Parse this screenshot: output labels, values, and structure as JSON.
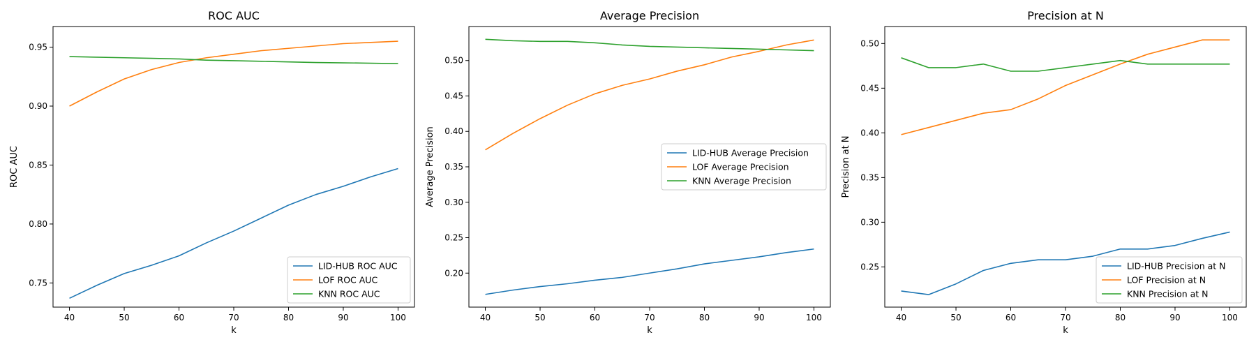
{
  "chart_data": [
    {
      "type": "line",
      "title": "ROC AUC",
      "xlabel": "k",
      "ylabel": "ROC AUC",
      "xlim": [
        37,
        103
      ],
      "ylim": [
        0.7295,
        0.9675
      ],
      "xticks": [
        40,
        50,
        60,
        70,
        80,
        90,
        100
      ],
      "yticks": [
        0.75,
        0.8,
        0.85,
        0.9,
        0.95
      ],
      "ytick_labels": [
        "0.75",
        "0.80",
        "0.85",
        "0.90",
        "0.95"
      ],
      "grid": false,
      "legend_position": "lower-right",
      "x": [
        40,
        45,
        50,
        55,
        60,
        65,
        70,
        75,
        80,
        85,
        90,
        95,
        100
      ],
      "series": [
        {
          "name": "LID-HUB ROC AUC",
          "color": "#1f77b4",
          "values": [
            0.737,
            0.748,
            0.758,
            0.765,
            0.773,
            0.784,
            0.794,
            0.805,
            0.816,
            0.825,
            0.832,
            0.84,
            0.847
          ]
        },
        {
          "name": "LOF ROC AUC",
          "color": "#ff7f0e",
          "values": [
            0.9,
            0.912,
            0.923,
            0.931,
            0.937,
            0.941,
            0.944,
            0.947,
            0.949,
            0.951,
            0.953,
            0.954,
            0.955
          ]
        },
        {
          "name": "KNN ROC AUC",
          "color": "#2ca02c",
          "values": [
            0.942,
            0.9415,
            0.941,
            0.9405,
            0.94,
            0.939,
            0.9385,
            0.938,
            0.9375,
            0.937,
            0.9367,
            0.9364,
            0.936
          ]
        }
      ]
    },
    {
      "type": "line",
      "title": "Average Precision",
      "xlabel": "k",
      "ylabel": "Average Precision",
      "xlim": [
        37,
        103
      ],
      "ylim": [
        0.152,
        0.548
      ],
      "xticks": [
        40,
        50,
        60,
        70,
        80,
        90,
        100
      ],
      "yticks": [
        0.2,
        0.25,
        0.3,
        0.35,
        0.4,
        0.45,
        0.5
      ],
      "ytick_labels": [
        "0.20",
        "0.25",
        "0.30",
        "0.35",
        "0.40",
        "0.45",
        "0.50"
      ],
      "grid": false,
      "legend_position": "center-right",
      "x": [
        40,
        45,
        50,
        55,
        60,
        65,
        70,
        75,
        80,
        85,
        90,
        95,
        100
      ],
      "series": [
        {
          "name": "LID-HUB Average Precision",
          "color": "#1f77b4",
          "values": [
            0.17,
            0.176,
            0.181,
            0.185,
            0.19,
            0.194,
            0.2,
            0.206,
            0.213,
            0.218,
            0.223,
            0.229,
            0.234
          ]
        },
        {
          "name": "LOF Average Precision",
          "color": "#ff7f0e",
          "values": [
            0.374,
            0.397,
            0.418,
            0.437,
            0.453,
            0.465,
            0.474,
            0.485,
            0.494,
            0.505,
            0.513,
            0.522,
            0.529
          ]
        },
        {
          "name": "KNN Average Precision",
          "color": "#2ca02c",
          "values": [
            0.53,
            0.528,
            0.527,
            0.527,
            0.525,
            0.522,
            0.52,
            0.519,
            0.518,
            0.517,
            0.516,
            0.515,
            0.514
          ]
        }
      ]
    },
    {
      "type": "line",
      "title": "Precision at N",
      "xlabel": "k",
      "ylabel": "Precision at N",
      "xlim": [
        37,
        103
      ],
      "ylim": [
        0.205,
        0.519
      ],
      "xticks": [
        40,
        50,
        60,
        70,
        80,
        90,
        100
      ],
      "yticks": [
        0.25,
        0.3,
        0.35,
        0.4,
        0.45,
        0.5
      ],
      "ytick_labels": [
        "0.25",
        "0.30",
        "0.35",
        "0.40",
        "0.45",
        "0.50"
      ],
      "grid": false,
      "legend_position": "lower-right",
      "x": [
        40,
        45,
        50,
        55,
        60,
        65,
        70,
        75,
        80,
        85,
        90,
        95,
        100
      ],
      "series": [
        {
          "name": "LID-HUB Precision at N",
          "color": "#1f77b4",
          "values": [
            0.223,
            0.219,
            0.231,
            0.246,
            0.254,
            0.258,
            0.258,
            0.262,
            0.27,
            0.27,
            0.274,
            0.282,
            0.289
          ]
        },
        {
          "name": "LOF Precision at N",
          "color": "#ff7f0e",
          "values": [
            0.398,
            0.406,
            0.414,
            0.422,
            0.426,
            0.438,
            0.453,
            0.465,
            0.477,
            0.488,
            0.496,
            0.504,
            0.504
          ]
        },
        {
          "name": "KNN Precision at N",
          "color": "#2ca02c",
          "values": [
            0.484,
            0.473,
            0.473,
            0.477,
            0.469,
            0.469,
            0.473,
            0.477,
            0.481,
            0.477,
            0.477,
            0.477,
            0.477
          ]
        }
      ]
    }
  ]
}
